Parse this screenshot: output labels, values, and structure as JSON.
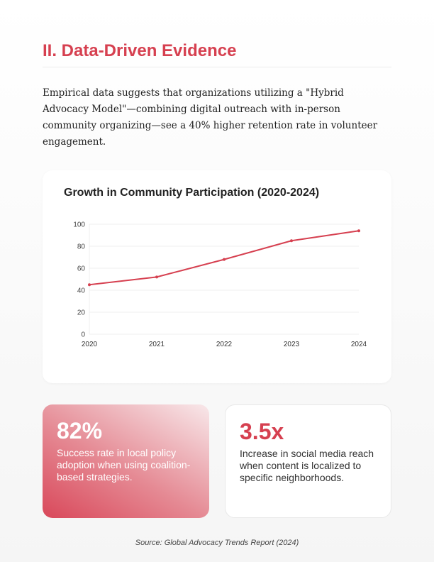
{
  "section_title": "II. Data-Driven Evidence",
  "intro": "Empirical data suggests that organizations utilizing a \"Hybrid Advocacy Model\"—combining digital outreach with in-person community organizing—see a 40% higher retention rate in volunteer engagement.",
  "chart_data": {
    "type": "line",
    "title": "Growth in Community Participation (2020-2024)",
    "categories": [
      "2020",
      "2021",
      "2022",
      "2023",
      "2024"
    ],
    "series": [
      {
        "values": [
          45,
          52,
          68,
          85,
          94
        ],
        "color": "#d64050"
      }
    ],
    "ylim": [
      0,
      100
    ],
    "yticks": [
      0,
      20,
      40,
      60,
      80,
      100
    ],
    "grid": true
  },
  "stats": [
    {
      "value": "82%",
      "description": "Success rate in local policy adoption when using coalition-based strategies."
    },
    {
      "value": "3.5x",
      "description": "Increase in social media reach when content is localized to specific neighborhoods."
    }
  ],
  "source": "Source: Global Advocacy Trends Report (2024)"
}
